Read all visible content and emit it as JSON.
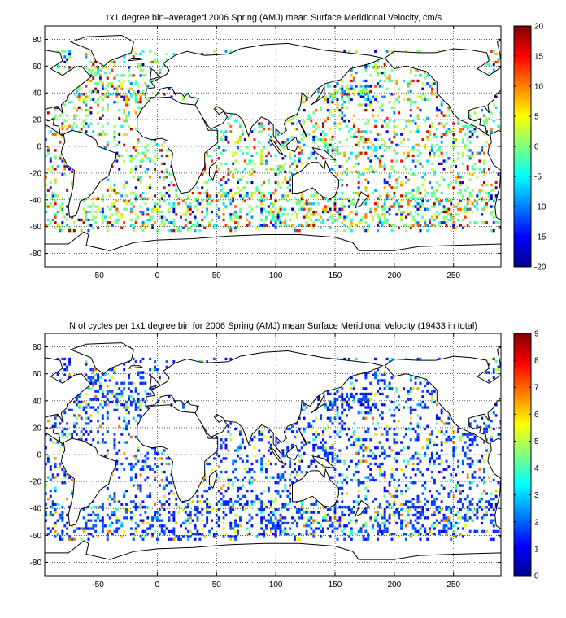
{
  "figure": {
    "panels": [
      {
        "title": "1x1 degree bin–averaged 2006 Spring (AMJ) mean Surface Meridional Velocity, cm/s",
        "colorbar_ticks": [
          "20",
          "15",
          "10",
          "5",
          "0",
          "-5",
          "-10",
          "-15",
          "-20"
        ]
      },
      {
        "title": "N of cycles per 1x1 degree bin for 2006 Spring (AMJ) mean Surface Meridional Velocity (19433 in total)",
        "colorbar_ticks": [
          "9",
          "8",
          "7",
          "6",
          "5",
          "4",
          "3",
          "2",
          "1",
          "0"
        ]
      }
    ]
  },
  "chart_data": [
    {
      "type": "heatmap",
      "title": "1x1 degree bin–averaged 2006 Spring (AMJ) mean Surface Meridional Velocity, cm/s",
      "x_ticks": [
        -50,
        0,
        50,
        100,
        150,
        200,
        250
      ],
      "y_ticks": [
        80,
        60,
        40,
        20,
        0,
        -20,
        -40,
        -60,
        -80
      ],
      "xlim": [
        -95,
        290
      ],
      "ylim": [
        -90,
        90
      ],
      "clim": [
        -20,
        20
      ],
      "colormap": "jet",
      "grid": true,
      "colorbar": "right",
      "x_tick_labels": [
        "-50",
        "0",
        "50",
        "100",
        "150",
        "200",
        "250"
      ],
      "y_tick_labels": [
        "80",
        "60",
        "40",
        "20",
        "0",
        "-20",
        "-40",
        "-60",
        "-80"
      ]
    },
    {
      "type": "heatmap",
      "title": "N of cycles per 1x1 degree bin for 2006 Spring (AMJ) mean Surface Meridional Velocity (19433 in total)",
      "x_ticks": [
        -50,
        0,
        50,
        100,
        150,
        200,
        250
      ],
      "y_ticks": [
        80,
        60,
        40,
        20,
        0,
        -20,
        -40,
        -60,
        -80
      ],
      "xlim": [
        -95,
        290
      ],
      "ylim": [
        -90,
        90
      ],
      "clim": [
        0,
        9
      ],
      "colormap": "jet",
      "grid": true,
      "colorbar": "right",
      "total_cycles": 19433,
      "x_tick_labels": [
        "-50",
        "0",
        "50",
        "100",
        "150",
        "200",
        "250"
      ],
      "y_tick_labels": [
        "80",
        "60",
        "40",
        "20",
        "0",
        "-20",
        "-40",
        "-60",
        "-80"
      ]
    }
  ],
  "colors": {
    "jet": [
      "#00008f",
      "#0000ff",
      "#0080ff",
      "#00ffff",
      "#80ff80",
      "#ffff00",
      "#ff8000",
      "#ff0000",
      "#800000"
    ],
    "coast": "#000000",
    "background": "#ffffff"
  }
}
